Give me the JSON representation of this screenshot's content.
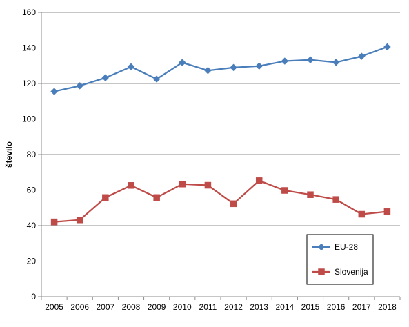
{
  "chart_data": {
    "type": "line",
    "title": "",
    "xlabel": "",
    "ylabel": "število",
    "categories": [
      "2005",
      "2006",
      "2007",
      "2008",
      "2009",
      "2010",
      "2011",
      "2012",
      "2013",
      "2014",
      "2015",
      "2016",
      "2017",
      "2018"
    ],
    "ylim": [
      0,
      160
    ],
    "yticks": [
      0,
      20,
      40,
      60,
      80,
      100,
      120,
      140,
      160
    ],
    "grid": true,
    "legend_position": "bottom-right",
    "series": [
      {
        "name": "EU-28",
        "color": "#4A7EBB",
        "marker": "diamond",
        "values": [
          115.5,
          118.7,
          123.2,
          129.4,
          122.5,
          131.8,
          127.3,
          129.0,
          129.8,
          132.6,
          133.3,
          131.9,
          135.3,
          140.6
        ]
      },
      {
        "name": "Slovenija",
        "color": "#BE4B48",
        "marker": "square",
        "values": [
          42.1,
          43.2,
          55.8,
          62.6,
          55.8,
          63.4,
          62.7,
          52.3,
          65.3,
          59.8,
          57.4,
          54.7,
          46.4,
          47.9
        ]
      }
    ]
  }
}
